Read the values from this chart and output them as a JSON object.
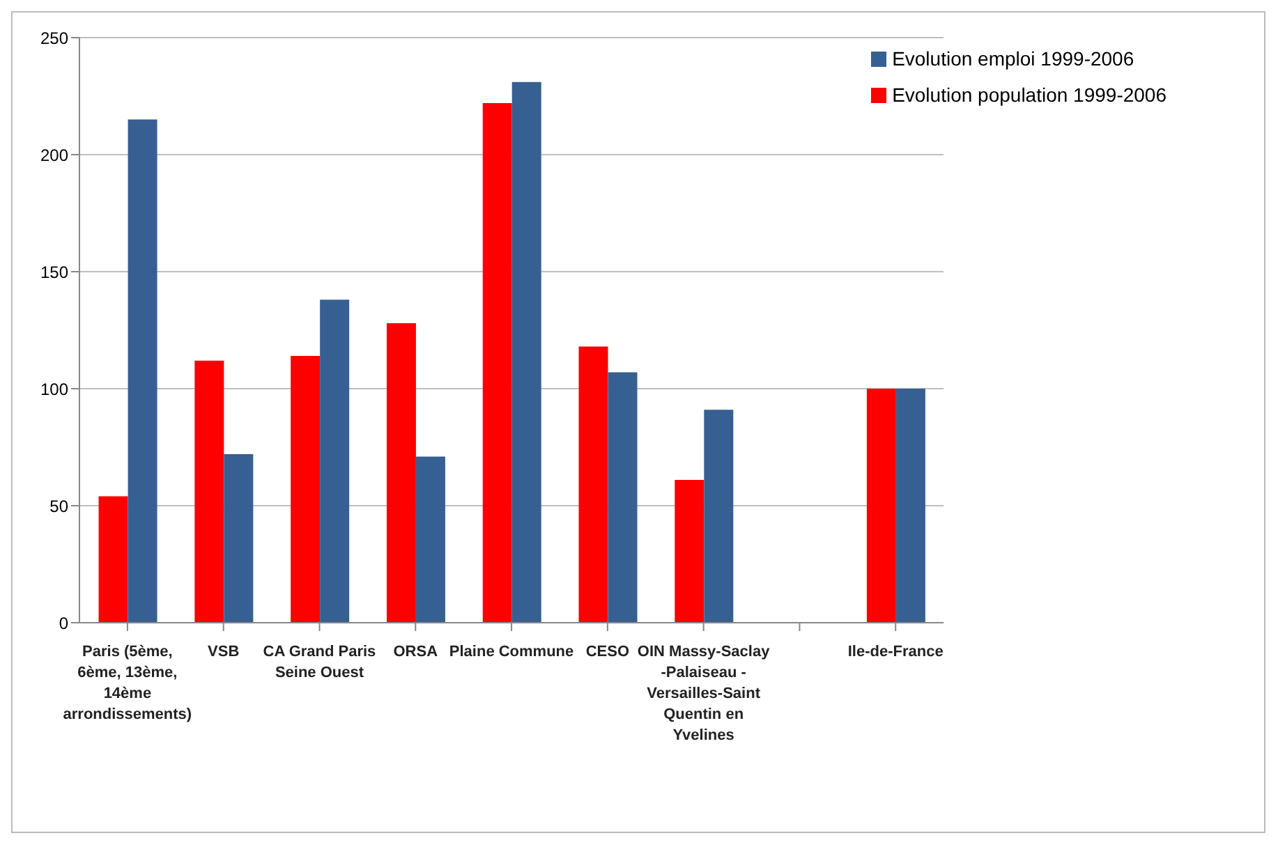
{
  "chart_data": {
    "type": "bar",
    "categories": [
      "Paris (5ème, 6ème, 13ème, 14ème arrondissements)",
      "VSB",
      "CA Grand Paris Seine Ouest",
      "ORSA",
      "Plaine Commune",
      "CESO",
      "OIN Massy-Saclay -Palaiseau -Versailles-Saint Quentin en Yvelines",
      null,
      "Ile-de-France"
    ],
    "series": [
      {
        "name": "Evolution population 1999-2006",
        "color": "#ff0000",
        "values": [
          54,
          112,
          114,
          128,
          222,
          118,
          61,
          null,
          100
        ]
      },
      {
        "name": "Evolution emploi 1999-2006",
        "color": "#376092",
        "values": [
          215,
          72,
          138,
          71,
          231,
          107,
          91,
          null,
          100
        ]
      }
    ],
    "ylim": [
      0,
      250
    ],
    "yticks": [
      0,
      50,
      100,
      150,
      200,
      250
    ],
    "grid": "y",
    "legend": "top right"
  }
}
